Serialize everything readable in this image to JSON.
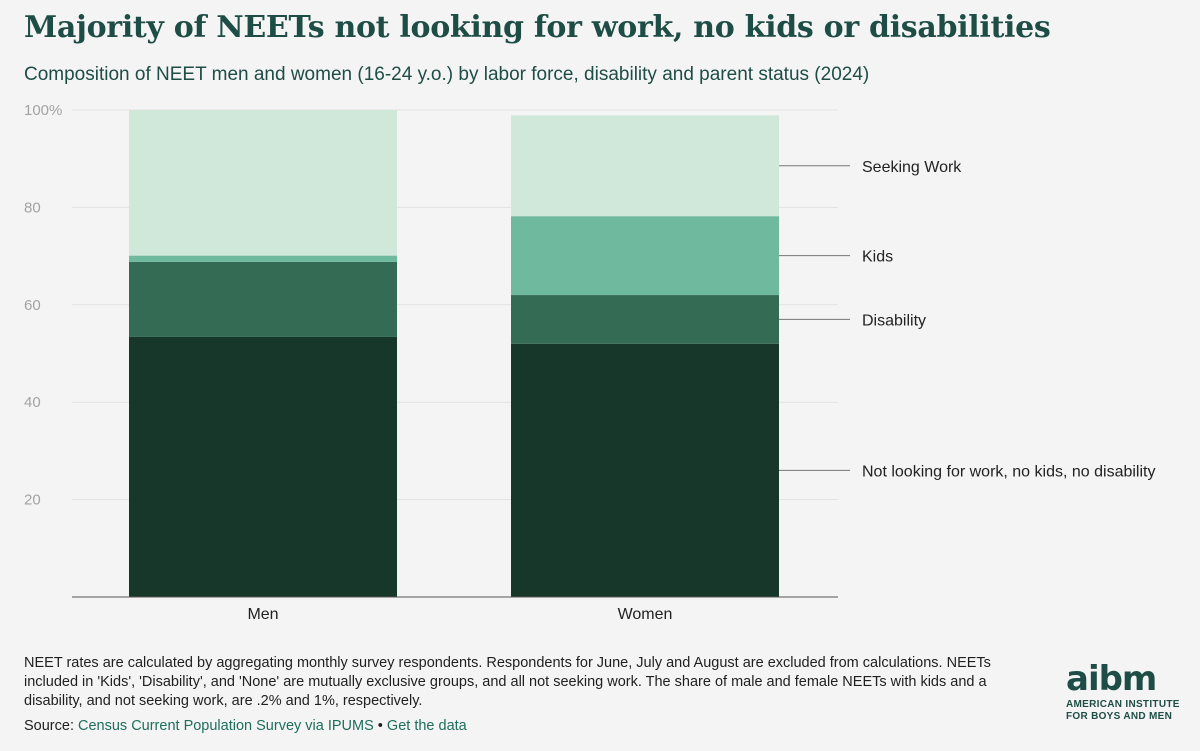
{
  "header": {
    "title": "Majority of NEETs not looking for work, no kids or disabilities",
    "subtitle": "Composition of NEET men and women (16-24 y.o.) by labor force, disability and parent status (2024)"
  },
  "chart_data": {
    "type": "bar",
    "stacked": true,
    "categories": [
      "Men",
      "Women"
    ],
    "series": [
      {
        "name": "Not looking for work, no kids, no disability",
        "values": [
          53.4,
          52.0
        ],
        "color": "#17372a"
      },
      {
        "name": "Disability",
        "values": [
          15.4,
          10.0
        ],
        "color": "#346b54"
      },
      {
        "name": "Kids",
        "values": [
          1.3,
          16.2
        ],
        "color": "#6fba9f"
      },
      {
        "name": "Seeking Work",
        "values": [
          29.9,
          20.7
        ],
        "color": "#cfe8da"
      }
    ],
    "ylim": [
      0,
      100
    ],
    "yticks": [
      20,
      40,
      60,
      80,
      100
    ],
    "ytick_labels": [
      "20",
      "40",
      "60",
      "80",
      "100%"
    ],
    "grid": true,
    "legend": "right"
  },
  "footer": {
    "note": "NEET rates are calculated by aggregating monthly survey respondents. Respondents for June, July and August are excluded from calculations. NEETs included in 'Kids', 'Disability', and 'None' are mutually exclusive groups, and all not seeking work. The share of male and female NEETs with kids and a disability, and not seeking work, are .2% and 1%, respectively.",
    "source_prefix": "Source: ",
    "source_link": "Census Current Population Survey via IPUMS",
    "separator": " • ",
    "data_link": "Get the data"
  },
  "logo": {
    "mark": "aibm",
    "line1": "AMERICAN INSTITUTE",
    "line2": "FOR BOYS AND MEN"
  }
}
